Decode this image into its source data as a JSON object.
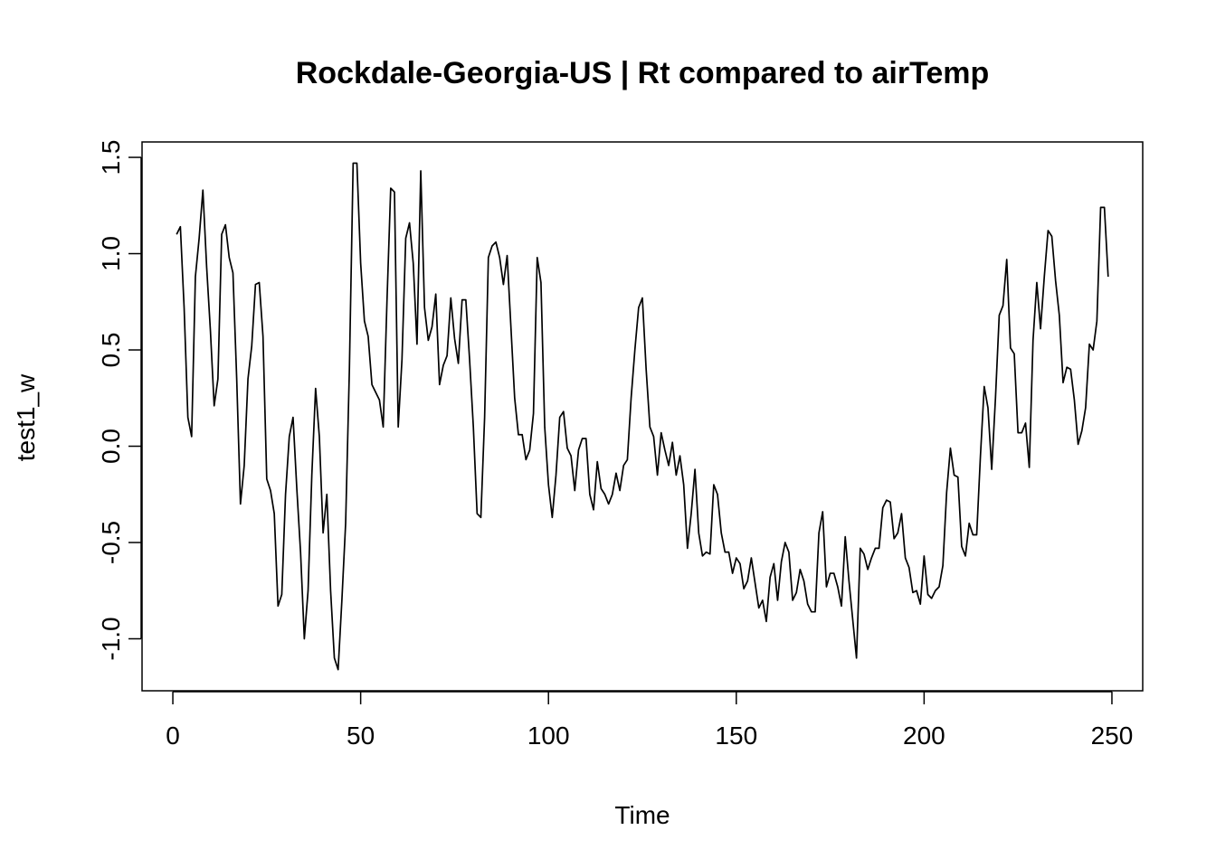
{
  "chart_data": {
    "type": "line",
    "title": "Rockdale-Georgia-US | Rt compared to airTemp",
    "xlabel": "Time",
    "ylabel": "test1_w",
    "xlim": [
      -8.2,
      258.2
    ],
    "ylim": [
      -1.27,
      1.58
    ],
    "x_ticks": [
      0,
      50,
      100,
      150,
      200,
      250
    ],
    "x_tick_labels": [
      "0",
      "50",
      "100",
      "150",
      "200",
      "250"
    ],
    "y_ticks": [
      -1.0,
      -0.5,
      0.0,
      0.5,
      1.0,
      1.5
    ],
    "y_tick_labels": [
      "-1.0",
      "-0.5",
      "0.0",
      "0.5",
      "1.0",
      "1.5"
    ],
    "grid": false,
    "legend": "none",
    "colors": {
      "line": "#000000",
      "background": "#ffffff"
    },
    "series": [
      {
        "values": [
          1.1,
          1.14,
          0.72,
          0.15,
          0.05,
          0.88,
          1.08,
          1.33,
          0.93,
          0.6,
          0.21,
          0.35,
          1.1,
          1.15,
          0.98,
          0.9,
          0.35,
          -0.3,
          -0.1,
          0.35,
          0.52,
          0.84,
          0.85,
          0.57,
          -0.17,
          -0.23,
          -0.35,
          -0.83,
          -0.77,
          -0.25,
          0.05,
          0.15,
          -0.22,
          -0.55,
          -1.0,
          -0.75,
          -0.15,
          0.3,
          0.05,
          -0.45,
          -0.25,
          -0.75,
          -1.1,
          -1.16,
          -0.8,
          -0.4,
          0.4,
          1.47,
          1.47,
          0.95,
          0.65,
          0.57,
          0.32,
          0.28,
          0.24,
          0.1,
          0.75,
          1.34,
          1.32,
          0.1,
          0.45,
          1.08,
          1.16,
          0.95,
          0.53,
          1.43,
          0.72,
          0.55,
          0.62,
          0.79,
          0.32,
          0.42,
          0.47,
          0.77,
          0.56,
          0.43,
          0.76,
          0.76,
          0.45,
          0.1,
          -0.35,
          -0.37,
          0.15,
          0.98,
          1.04,
          1.06,
          0.98,
          0.84,
          0.99,
          0.62,
          0.25,
          0.06,
          0.06,
          -0.07,
          -0.02,
          0.17,
          0.98,
          0.85,
          0.1,
          -0.2,
          -0.37,
          -0.15,
          0.15,
          0.18,
          -0.01,
          -0.05,
          -0.23,
          -0.02,
          0.04,
          0.04,
          -0.25,
          -0.33,
          -0.08,
          -0.22,
          -0.25,
          -0.3,
          -0.25,
          -0.14,
          -0.23,
          -0.1,
          -0.07,
          0.25,
          0.5,
          0.72,
          0.77,
          0.4,
          0.1,
          0.05,
          -0.15,
          0.07,
          -0.02,
          -0.1,
          0.02,
          -0.15,
          -0.05,
          -0.2,
          -0.53,
          -0.35,
          -0.12,
          -0.45,
          -0.57,
          -0.55,
          -0.56,
          -0.2,
          -0.25,
          -0.45,
          -0.55,
          -0.55,
          -0.66,
          -0.58,
          -0.61,
          -0.74,
          -0.7,
          -0.58,
          -0.71,
          -0.84,
          -0.8,
          -0.91,
          -0.68,
          -0.61,
          -0.8,
          -0.6,
          -0.5,
          -0.55,
          -0.8,
          -0.76,
          -0.64,
          -0.7,
          -0.82,
          -0.86,
          -0.86,
          -0.45,
          -0.34,
          -0.73,
          -0.66,
          -0.66,
          -0.73,
          -0.83,
          -0.47,
          -0.7,
          -0.9,
          -1.1,
          -0.53,
          -0.56,
          -0.64,
          -0.58,
          -0.53,
          -0.53,
          -0.32,
          -0.28,
          -0.29,
          -0.48,
          -0.45,
          -0.35,
          -0.58,
          -0.63,
          -0.76,
          -0.75,
          -0.82,
          -0.57,
          -0.77,
          -0.79,
          -0.75,
          -0.73,
          -0.62,
          -0.24,
          -0.01,
          -0.15,
          -0.16,
          -0.52,
          -0.57,
          -0.4,
          -0.46,
          -0.46,
          -0.05,
          0.31,
          0.2,
          -0.12,
          0.25,
          0.68,
          0.73,
          0.97,
          0.51,
          0.48,
          0.07,
          0.07,
          0.12,
          -0.11,
          0.55,
          0.85,
          0.61,
          0.88,
          1.12,
          1.09,
          0.86,
          0.68,
          0.33,
          0.41,
          0.4,
          0.24,
          0.01,
          0.08,
          0.2,
          0.53,
          0.5,
          0.65,
          1.24,
          1.24,
          0.88
        ]
      }
    ]
  }
}
